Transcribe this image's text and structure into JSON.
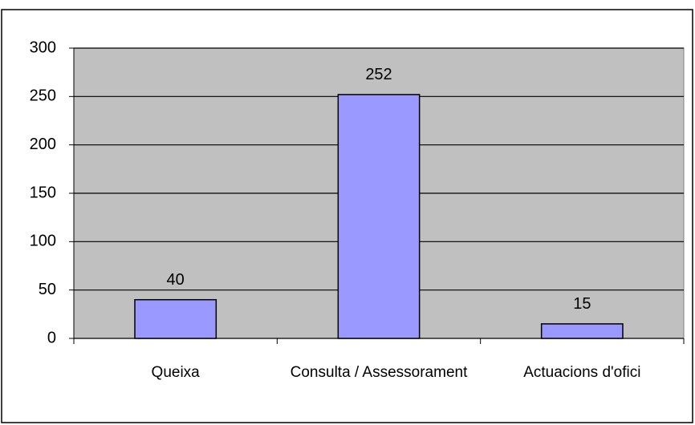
{
  "chart_data": {
    "type": "bar",
    "categories": [
      "Queixa",
      "Consulta / Assessorament",
      "Actuacions d'ofici"
    ],
    "values": [
      40,
      252,
      15
    ],
    "color": "#9999ff",
    "plot_background": "#c0c0c0",
    "ylim": [
      0,
      300
    ],
    "yticks": [
      0,
      50,
      100,
      150,
      200,
      250,
      300
    ],
    "grid": true,
    "data_labels": true
  }
}
